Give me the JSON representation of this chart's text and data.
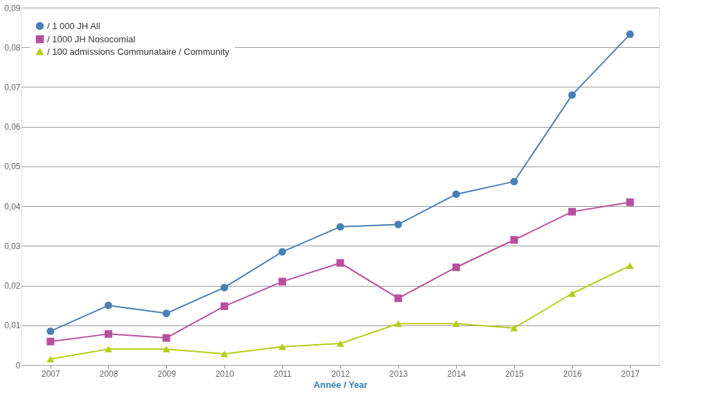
{
  "chart_data": {
    "type": "line",
    "xlabel": "Année / Year",
    "categories": [
      "2007",
      "2008",
      "2009",
      "2010",
      "2011",
      "2012",
      "2013",
      "2014",
      "2015",
      "2016",
      "2017"
    ],
    "series": [
      {
        "name": "/ 1 000 JH All",
        "color": "#4a7fb5",
        "marker": "circle",
        "values": [
          0.0085,
          0.015,
          0.013,
          0.0195,
          0.0285,
          0.0348,
          0.0354,
          0.043,
          0.0462,
          0.068,
          0.0833
        ]
      },
      {
        "name": "/ 1000 JH Nosocomial",
        "color": "#b84f9e",
        "marker": "square",
        "values": [
          0.0059,
          0.0078,
          0.0068,
          0.0148,
          0.021,
          0.0257,
          0.0168,
          0.0246,
          0.0315,
          0.0386,
          0.041
        ]
      },
      {
        "name": "/ 100 admissions Communataire / Community",
        "color": "#b5cc18",
        "marker": "triangle",
        "values": [
          0.0015,
          0.004,
          0.004,
          0.0028,
          0.0046,
          0.0054,
          0.0104,
          0.0104,
          0.0093,
          0.018,
          0.025
        ]
      }
    ],
    "ylim": [
      0,
      0.09
    ],
    "yticks": [
      0,
      {
        "value": 0.01,
        "label": "0,01"
      },
      {
        "value": 0.02,
        "label": "0,02"
      },
      {
        "value": 0.03,
        "label": "0,03"
      },
      {
        "value": 0.04,
        "label": "0,04"
      },
      {
        "value": 0.05,
        "label": "0,05"
      },
      {
        "value": 0.06,
        "label": "0,06"
      },
      {
        "value": 0.07,
        "label": "0,07"
      },
      {
        "value": 0.08,
        "label": "0,08"
      },
      {
        "value": 0.09,
        "label": "0,09"
      }
    ],
    "grid": "y",
    "legend": "top left",
    "line_style": "solid"
  }
}
